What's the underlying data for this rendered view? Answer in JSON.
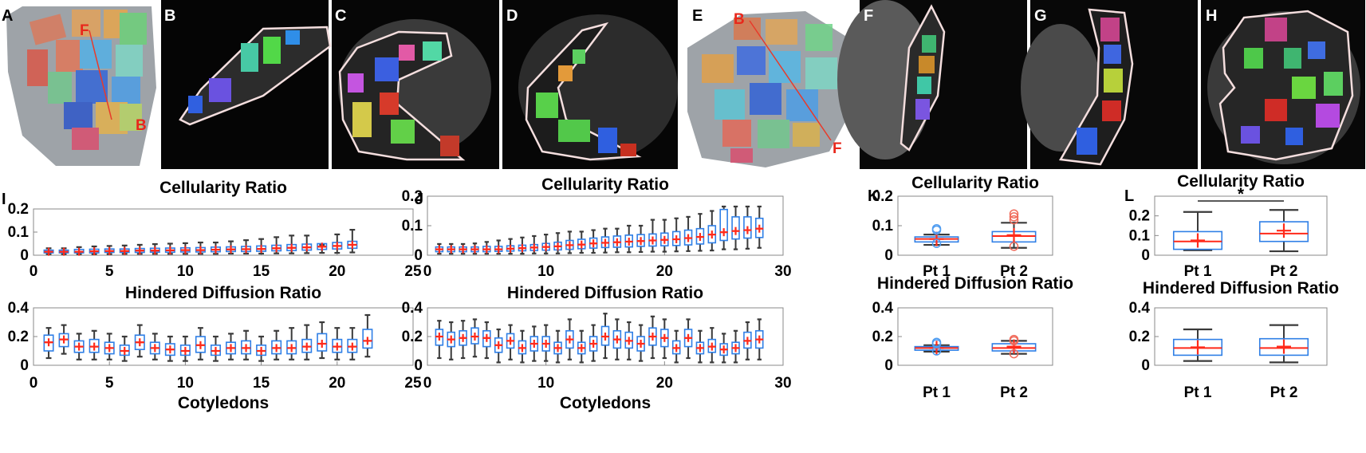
{
  "colors": {
    "box": "#2f7fe6",
    "whisker": "#3a3a3a",
    "median": "#ff2a1a",
    "mean": "#ff2a1a",
    "outlier_k": "#4f9cf0",
    "outlier_k2": "#f06a5a",
    "axis": "#888888",
    "mri_bg": "#050505"
  },
  "image_panels": [
    {
      "label": "A"
    },
    {
      "label": "B",
      "annot": ""
    },
    {
      "label": "C"
    },
    {
      "label": "D"
    },
    {
      "label": "E"
    },
    {
      "label": "F"
    },
    {
      "label": "G"
    },
    {
      "label": "H"
    }
  ],
  "model_annotations": {
    "A_top": "F",
    "A_bottom": "B",
    "E_top": "B",
    "E_bottom": "F"
  },
  "chart_data": [
    {
      "id": "I-top",
      "panel": "I",
      "type": "box",
      "title": "Cellularity Ratio",
      "xlabel": "",
      "xlim": [
        0,
        25
      ],
      "ylim": [
        0,
        0.2
      ],
      "xticks": [
        "0",
        "5",
        "10",
        "15",
        "20",
        "25"
      ],
      "yticks": [
        "0",
        "0.1",
        "0.2"
      ],
      "x": [
        1,
        2,
        3,
        4,
        5,
        6,
        7,
        8,
        9,
        10,
        11,
        12,
        13,
        14,
        15,
        16,
        17,
        18,
        19,
        20,
        21
      ],
      "median": [
        0.015,
        0.015,
        0.015,
        0.017,
        0.018,
        0.018,
        0.02,
        0.02,
        0.021,
        0.022,
        0.022,
        0.024,
        0.025,
        0.026,
        0.027,
        0.03,
        0.032,
        0.034,
        0.037,
        0.04,
        0.045
      ],
      "q1": [
        0.01,
        0.01,
        0.01,
        0.01,
        0.012,
        0.012,
        0.012,
        0.013,
        0.013,
        0.014,
        0.014,
        0.015,
        0.016,
        0.016,
        0.017,
        0.019,
        0.02,
        0.022,
        0.025,
        0.027,
        0.03
      ],
      "q3": [
        0.022,
        0.022,
        0.025,
        0.026,
        0.027,
        0.027,
        0.029,
        0.03,
        0.031,
        0.032,
        0.033,
        0.035,
        0.036,
        0.038,
        0.04,
        0.043,
        0.046,
        0.048,
        0.05,
        0.055,
        0.06
      ],
      "whisk_lo": [
        0.005,
        0.005,
        0.005,
        0.005,
        0.005,
        0.006,
        0.006,
        0.006,
        0.006,
        0.006,
        0.006,
        0.006,
        0.007,
        0.007,
        0.007,
        0.008,
        0.008,
        0.009,
        0.01,
        0.01,
        0.012
      ],
      "whisk_hi": [
        0.03,
        0.03,
        0.035,
        0.038,
        0.04,
        0.042,
        0.045,
        0.048,
        0.05,
        0.052,
        0.055,
        0.055,
        0.06,
        0.065,
        0.07,
        0.078,
        0.085,
        0.085,
        0.045,
        0.09,
        0.11
      ]
    },
    {
      "id": "I-bottom",
      "panel": "I",
      "type": "box",
      "title": "Hindered Diffusion Ratio",
      "xlabel": "Cotyledons",
      "xlim": [
        0,
        25
      ],
      "ylim": [
        0,
        0.4
      ],
      "xticks": [
        "0",
        "5",
        "10",
        "15",
        "20",
        "25"
      ],
      "yticks": [
        "0",
        "0.2",
        "0.4"
      ],
      "x": [
        1,
        2,
        3,
        4,
        5,
        6,
        7,
        8,
        9,
        10,
        11,
        12,
        13,
        14,
        15,
        16,
        17,
        18,
        19,
        20,
        21,
        22
      ],
      "median": [
        0.16,
        0.18,
        0.13,
        0.13,
        0.12,
        0.1,
        0.16,
        0.12,
        0.11,
        0.1,
        0.14,
        0.1,
        0.12,
        0.12,
        0.1,
        0.12,
        0.12,
        0.13,
        0.15,
        0.13,
        0.13,
        0.17
      ],
      "q1": [
        0.1,
        0.13,
        0.09,
        0.09,
        0.08,
        0.07,
        0.11,
        0.08,
        0.07,
        0.07,
        0.09,
        0.07,
        0.08,
        0.08,
        0.07,
        0.08,
        0.08,
        0.09,
        0.1,
        0.09,
        0.09,
        0.12
      ],
      "q3": [
        0.21,
        0.22,
        0.17,
        0.18,
        0.16,
        0.14,
        0.21,
        0.16,
        0.15,
        0.14,
        0.2,
        0.14,
        0.16,
        0.17,
        0.14,
        0.17,
        0.17,
        0.18,
        0.22,
        0.18,
        0.18,
        0.25
      ],
      "whisk_lo": [
        0.05,
        0.08,
        0.04,
        0.04,
        0.04,
        0.03,
        0.06,
        0.04,
        0.03,
        0.03,
        0.04,
        0.03,
        0.04,
        0.04,
        0.03,
        0.04,
        0.04,
        0.04,
        0.05,
        0.04,
        0.04,
        0.06
      ],
      "whisk_hi": [
        0.26,
        0.28,
        0.22,
        0.24,
        0.22,
        0.2,
        0.28,
        0.22,
        0.2,
        0.2,
        0.26,
        0.2,
        0.22,
        0.24,
        0.2,
        0.24,
        0.26,
        0.28,
        0.3,
        0.26,
        0.26,
        0.35
      ]
    },
    {
      "id": "J-top",
      "panel": "J",
      "type": "box",
      "title": "Cellularity Ratio",
      "xlabel": "",
      "xlim": [
        0,
        30
      ],
      "ylim": [
        0,
        0.2
      ],
      "xticks": [
        "0",
        "10",
        "20",
        "30"
      ],
      "yticks": [
        "0",
        "0.1",
        "0.2"
      ],
      "x": [
        1,
        2,
        3,
        4,
        5,
        6,
        7,
        8,
        9,
        10,
        11,
        12,
        13,
        14,
        15,
        16,
        17,
        18,
        19,
        20,
        21,
        22,
        23,
        24,
        25,
        26,
        27,
        28
      ],
      "median": [
        0.02,
        0.02,
        0.02,
        0.02,
        0.02,
        0.02,
        0.022,
        0.024,
        0.026,
        0.028,
        0.03,
        0.034,
        0.036,
        0.04,
        0.042,
        0.044,
        0.046,
        0.048,
        0.05,
        0.052,
        0.054,
        0.058,
        0.062,
        0.07,
        0.078,
        0.082,
        0.085,
        0.09
      ],
      "q1": [
        0.012,
        0.012,
        0.012,
        0.012,
        0.012,
        0.013,
        0.014,
        0.015,
        0.016,
        0.017,
        0.018,
        0.02,
        0.022,
        0.024,
        0.026,
        0.027,
        0.028,
        0.03,
        0.031,
        0.032,
        0.033,
        0.035,
        0.038,
        0.042,
        0.05,
        0.055,
        0.058,
        0.06
      ],
      "q3": [
        0.028,
        0.028,
        0.028,
        0.028,
        0.03,
        0.03,
        0.032,
        0.034,
        0.036,
        0.04,
        0.044,
        0.05,
        0.054,
        0.058,
        0.062,
        0.065,
        0.068,
        0.07,
        0.072,
        0.075,
        0.08,
        0.085,
        0.09,
        0.1,
        0.155,
        0.13,
        0.13,
        0.125
      ],
      "whisk_lo": [
        0.005,
        0.005,
        0.005,
        0.005,
        0.005,
        0.005,
        0.005,
        0.005,
        0.006,
        0.006,
        0.006,
        0.007,
        0.008,
        0.008,
        0.009,
        0.01,
        0.01,
        0.011,
        0.012,
        0.012,
        0.013,
        0.014,
        0.015,
        0.016,
        0.02,
        0.02,
        0.022,
        0.025
      ],
      "whisk_hi": [
        0.038,
        0.038,
        0.038,
        0.04,
        0.045,
        0.05,
        0.055,
        0.06,
        0.065,
        0.07,
        0.075,
        0.08,
        0.08,
        0.085,
        0.09,
        0.09,
        0.1,
        0.1,
        0.12,
        0.12,
        0.125,
        0.13,
        0.14,
        0.15,
        0.165,
        0.165,
        0.165,
        0.165
      ]
    },
    {
      "id": "J-bottom",
      "panel": "J",
      "type": "box",
      "title": "Hindered Diffusion Ratio",
      "xlabel": "Cotyledons",
      "xlim": [
        0,
        30
      ],
      "ylim": [
        0,
        0.4
      ],
      "xticks": [
        "0",
        "10",
        "20",
        "30"
      ],
      "yticks": [
        "0",
        "0.2",
        "0.4"
      ],
      "x": [
        1,
        2,
        3,
        4,
        5,
        6,
        7,
        8,
        9,
        10,
        11,
        12,
        13,
        14,
        15,
        16,
        17,
        18,
        19,
        20,
        21,
        22,
        23,
        24,
        25,
        26,
        27,
        28
      ],
      "median": [
        0.2,
        0.18,
        0.19,
        0.2,
        0.19,
        0.14,
        0.17,
        0.12,
        0.15,
        0.15,
        0.12,
        0.18,
        0.12,
        0.15,
        0.2,
        0.18,
        0.17,
        0.15,
        0.2,
        0.19,
        0.12,
        0.19,
        0.12,
        0.13,
        0.11,
        0.12,
        0.17,
        0.18
      ],
      "q1": [
        0.14,
        0.13,
        0.14,
        0.15,
        0.13,
        0.09,
        0.12,
        0.08,
        0.1,
        0.1,
        0.08,
        0.12,
        0.08,
        0.1,
        0.14,
        0.12,
        0.12,
        0.1,
        0.14,
        0.13,
        0.08,
        0.13,
        0.08,
        0.09,
        0.07,
        0.08,
        0.12,
        0.12
      ],
      "q3": [
        0.25,
        0.23,
        0.24,
        0.26,
        0.24,
        0.19,
        0.22,
        0.17,
        0.2,
        0.2,
        0.16,
        0.24,
        0.16,
        0.2,
        0.27,
        0.24,
        0.23,
        0.2,
        0.26,
        0.25,
        0.17,
        0.25,
        0.16,
        0.18,
        0.15,
        0.16,
        0.23,
        0.24
      ],
      "whisk_lo": [
        0.05,
        0.04,
        0.05,
        0.06,
        0.05,
        0.02,
        0.04,
        0.02,
        0.03,
        0.03,
        0.02,
        0.04,
        0.02,
        0.03,
        0.05,
        0.04,
        0.04,
        0.03,
        0.05,
        0.05,
        0.02,
        0.05,
        0.02,
        0.02,
        0.02,
        0.02,
        0.04,
        0.04
      ],
      "whisk_hi": [
        0.31,
        0.3,
        0.31,
        0.32,
        0.3,
        0.25,
        0.28,
        0.24,
        0.27,
        0.28,
        0.24,
        0.32,
        0.24,
        0.28,
        0.36,
        0.32,
        0.3,
        0.28,
        0.34,
        0.32,
        0.24,
        0.32,
        0.24,
        0.26,
        0.22,
        0.24,
        0.3,
        0.32
      ]
    },
    {
      "id": "K-top",
      "panel": "K",
      "type": "box",
      "title": "Cellularity Ratio",
      "xlabel": "",
      "ylim": [
        0,
        0.2
      ],
      "yticks": [
        "0",
        "0.1",
        "0.2"
      ],
      "categories": [
        "Pt 1",
        "Pt 2"
      ],
      "median": [
        0.055,
        0.065
      ],
      "q1": [
        0.045,
        0.045
      ],
      "q3": [
        0.062,
        0.08
      ],
      "whisk_lo": [
        0.035,
        0.025
      ],
      "whisk_hi": [
        0.07,
        0.11
      ],
      "mean": [
        0.055,
        0.068
      ],
      "outliers": [
        [
          0.09,
          0.085,
          0.04
        ],
        [
          0.14,
          0.13,
          0.12,
          0.03
        ]
      ]
    },
    {
      "id": "K-bottom",
      "panel": "K",
      "type": "box",
      "title": "Hindered Diffusion Ratio",
      "xlabel": "",
      "ylim": [
        0,
        0.4
      ],
      "yticks": [
        "0",
        "0.2",
        "0.4"
      ],
      "categories": [
        "Pt 1",
        "Pt 2"
      ],
      "median": [
        0.12,
        0.12
      ],
      "q1": [
        0.105,
        0.1
      ],
      "q3": [
        0.13,
        0.15
      ],
      "whisk_lo": [
        0.095,
        0.08
      ],
      "whisk_hi": [
        0.14,
        0.17
      ],
      "mean": [
        0.12,
        0.13
      ],
      "outliers": [
        [
          0.16,
          0.15,
          0.1
        ],
        [
          0.18,
          0.17,
          0.08
        ]
      ]
    },
    {
      "id": "L-top",
      "panel": "L",
      "type": "box",
      "title": "Cellularity Ratio",
      "xlabel": "",
      "ylim": [
        0,
        0.3
      ],
      "yticks": [
        "0",
        "0.1",
        "0.2"
      ],
      "categories": [
        "Pt 1",
        "Pt 2"
      ],
      "median": [
        0.07,
        0.11
      ],
      "q1": [
        0.03,
        0.07
      ],
      "q3": [
        0.12,
        0.17
      ],
      "whisk_lo": [
        0.025,
        0.02
      ],
      "whisk_hi": [
        0.22,
        0.23
      ],
      "mean": [
        0.075,
        0.125
      ],
      "significance": "*"
    },
    {
      "id": "L-bottom",
      "panel": "L",
      "type": "box",
      "title": "Hindered Diffusion Ratio",
      "xlabel": "",
      "ylim": [
        0,
        0.4
      ],
      "yticks": [
        "0",
        "0.2",
        "0.4"
      ],
      "categories": [
        "Pt 1",
        "Pt 2"
      ],
      "median": [
        0.12,
        0.12
      ],
      "q1": [
        0.07,
        0.07
      ],
      "q3": [
        0.18,
        0.185
      ],
      "whisk_lo": [
        0.03,
        0.02
      ],
      "whisk_hi": [
        0.25,
        0.28
      ],
      "mean": [
        0.125,
        0.13
      ]
    }
  ],
  "panel_labels": {
    "I": "I",
    "J": "J",
    "K": "K",
    "L": "L"
  }
}
